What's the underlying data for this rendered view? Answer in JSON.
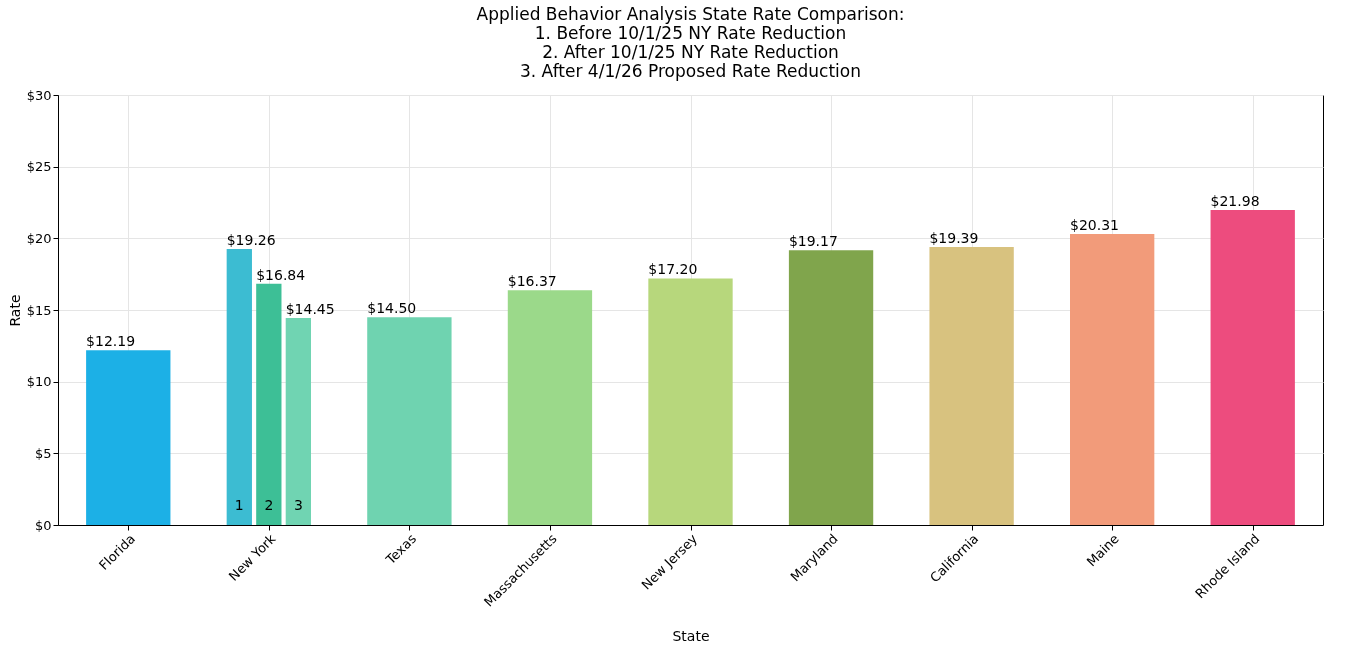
{
  "chart_data": {
    "type": "bar",
    "title": "Applied Behavior Analysis State Rate Comparison:\n1. Before 10/1/25 NY Rate Reduction\n2. After 10/1/25 NY Rate Reduction\n3. After 4/1/26 Proposed Rate Reduction",
    "xlabel": "State",
    "ylabel": "Rate",
    "categories": [
      "Florida",
      "New York",
      "Texas",
      "Massachusetts",
      "New Jersey",
      "Maryland",
      "California",
      "Maine",
      "Rhode Island"
    ],
    "series": [
      {
        "name": "1",
        "colors": [
          "#1cb0e6",
          "#3cbcd2",
          "#6fd3b0",
          "#9bd98a",
          "#b7d77c",
          "#80a54c",
          "#d8c27f",
          "#f29b7a",
          "#ed4c7e"
        ],
        "values": [
          12.19,
          19.26,
          14.5,
          16.37,
          17.2,
          19.17,
          19.39,
          20.31,
          21.98
        ],
        "value_labels": [
          "$12.19",
          "$19.26",
          "$14.50",
          "$16.37",
          "$17.20",
          "$19.17",
          "$19.39",
          "$20.31",
          "$21.98"
        ]
      },
      {
        "name": "2",
        "colors": [
          null,
          "#3dbf96",
          null,
          null,
          null,
          null,
          null,
          null,
          null
        ],
        "values": [
          null,
          16.84,
          null,
          null,
          null,
          null,
          null,
          null,
          null
        ],
        "value_labels": [
          null,
          "$16.84",
          null,
          null,
          null,
          null,
          null,
          null,
          null
        ]
      },
      {
        "name": "3",
        "colors": [
          null,
          "#70d4b2",
          null,
          null,
          null,
          null,
          null,
          null,
          null
        ],
        "values": [
          null,
          14.45,
          null,
          null,
          null,
          null,
          null,
          null,
          null
        ],
        "value_labels": [
          null,
          "$14.45",
          null,
          null,
          null,
          null,
          null,
          null,
          null
        ]
      }
    ],
    "ylim": [
      0,
      30
    ],
    "yticks": [
      {
        "value": 0,
        "label": "$0"
      },
      {
        "value": 5,
        "label": "$5"
      },
      {
        "value": 10,
        "label": "$10"
      },
      {
        "value": 15,
        "label": "$15"
      },
      {
        "value": 20,
        "label": "$20"
      },
      {
        "value": 25,
        "label": "$25"
      },
      {
        "value": 30,
        "label": "$30"
      }
    ],
    "grid": true
  }
}
